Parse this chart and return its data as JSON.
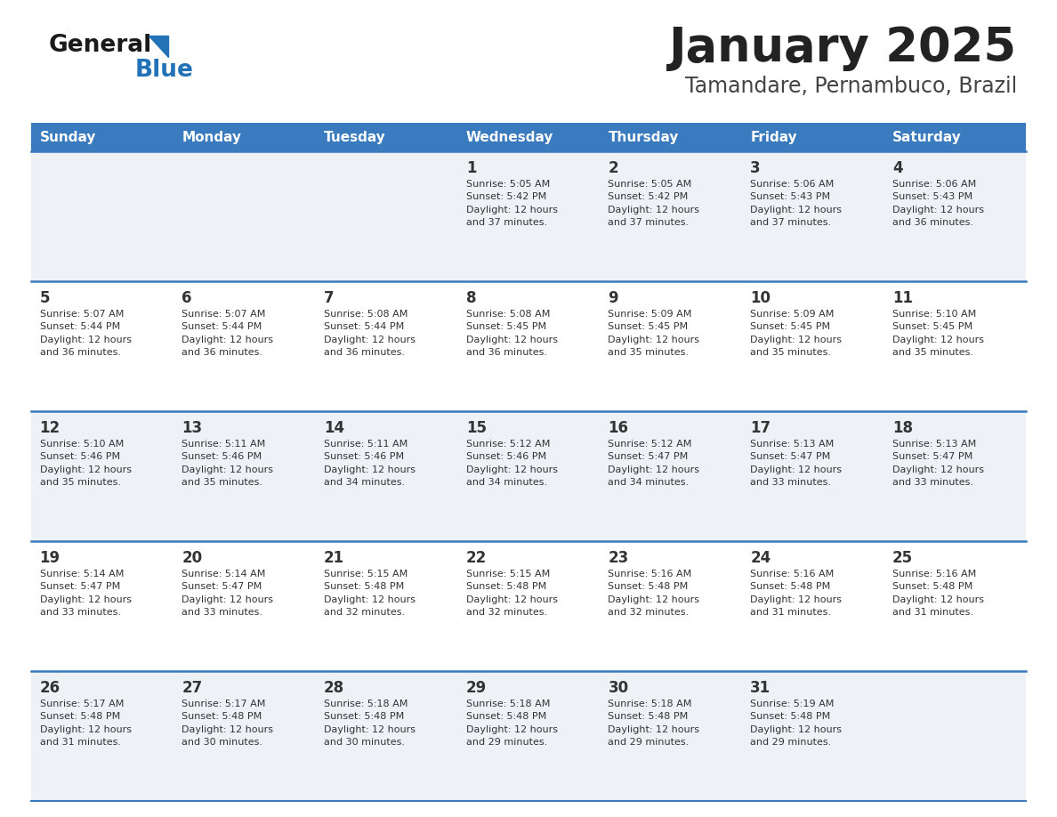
{
  "title": "January 2025",
  "subtitle": "Tamandare, Pernambuco, Brazil",
  "days_of_week": [
    "Sunday",
    "Monday",
    "Tuesday",
    "Wednesday",
    "Thursday",
    "Friday",
    "Saturday"
  ],
  "header_bg_color": "#3a7abf",
  "header_text_color": "#ffffff",
  "row_bg_even": "#eef2f7",
  "row_bg_odd": "#ffffff",
  "cell_text_color": "#333333",
  "title_color": "#222222",
  "subtitle_color": "#444444",
  "separator_color": "#3a7abf",
  "calendar": [
    [
      {
        "day": null,
        "info": ""
      },
      {
        "day": null,
        "info": ""
      },
      {
        "day": null,
        "info": ""
      },
      {
        "day": 1,
        "info": "Sunrise: 5:05 AM\nSunset: 5:42 PM\nDaylight: 12 hours\nand 37 minutes."
      },
      {
        "day": 2,
        "info": "Sunrise: 5:05 AM\nSunset: 5:42 PM\nDaylight: 12 hours\nand 37 minutes."
      },
      {
        "day": 3,
        "info": "Sunrise: 5:06 AM\nSunset: 5:43 PM\nDaylight: 12 hours\nand 37 minutes."
      },
      {
        "day": 4,
        "info": "Sunrise: 5:06 AM\nSunset: 5:43 PM\nDaylight: 12 hours\nand 36 minutes."
      }
    ],
    [
      {
        "day": 5,
        "info": "Sunrise: 5:07 AM\nSunset: 5:44 PM\nDaylight: 12 hours\nand 36 minutes."
      },
      {
        "day": 6,
        "info": "Sunrise: 5:07 AM\nSunset: 5:44 PM\nDaylight: 12 hours\nand 36 minutes."
      },
      {
        "day": 7,
        "info": "Sunrise: 5:08 AM\nSunset: 5:44 PM\nDaylight: 12 hours\nand 36 minutes."
      },
      {
        "day": 8,
        "info": "Sunrise: 5:08 AM\nSunset: 5:45 PM\nDaylight: 12 hours\nand 36 minutes."
      },
      {
        "day": 9,
        "info": "Sunrise: 5:09 AM\nSunset: 5:45 PM\nDaylight: 12 hours\nand 35 minutes."
      },
      {
        "day": 10,
        "info": "Sunrise: 5:09 AM\nSunset: 5:45 PM\nDaylight: 12 hours\nand 35 minutes."
      },
      {
        "day": 11,
        "info": "Sunrise: 5:10 AM\nSunset: 5:45 PM\nDaylight: 12 hours\nand 35 minutes."
      }
    ],
    [
      {
        "day": 12,
        "info": "Sunrise: 5:10 AM\nSunset: 5:46 PM\nDaylight: 12 hours\nand 35 minutes."
      },
      {
        "day": 13,
        "info": "Sunrise: 5:11 AM\nSunset: 5:46 PM\nDaylight: 12 hours\nand 35 minutes."
      },
      {
        "day": 14,
        "info": "Sunrise: 5:11 AM\nSunset: 5:46 PM\nDaylight: 12 hours\nand 34 minutes."
      },
      {
        "day": 15,
        "info": "Sunrise: 5:12 AM\nSunset: 5:46 PM\nDaylight: 12 hours\nand 34 minutes."
      },
      {
        "day": 16,
        "info": "Sunrise: 5:12 AM\nSunset: 5:47 PM\nDaylight: 12 hours\nand 34 minutes."
      },
      {
        "day": 17,
        "info": "Sunrise: 5:13 AM\nSunset: 5:47 PM\nDaylight: 12 hours\nand 33 minutes."
      },
      {
        "day": 18,
        "info": "Sunrise: 5:13 AM\nSunset: 5:47 PM\nDaylight: 12 hours\nand 33 minutes."
      }
    ],
    [
      {
        "day": 19,
        "info": "Sunrise: 5:14 AM\nSunset: 5:47 PM\nDaylight: 12 hours\nand 33 minutes."
      },
      {
        "day": 20,
        "info": "Sunrise: 5:14 AM\nSunset: 5:47 PM\nDaylight: 12 hours\nand 33 minutes."
      },
      {
        "day": 21,
        "info": "Sunrise: 5:15 AM\nSunset: 5:48 PM\nDaylight: 12 hours\nand 32 minutes."
      },
      {
        "day": 22,
        "info": "Sunrise: 5:15 AM\nSunset: 5:48 PM\nDaylight: 12 hours\nand 32 minutes."
      },
      {
        "day": 23,
        "info": "Sunrise: 5:16 AM\nSunset: 5:48 PM\nDaylight: 12 hours\nand 32 minutes."
      },
      {
        "day": 24,
        "info": "Sunrise: 5:16 AM\nSunset: 5:48 PM\nDaylight: 12 hours\nand 31 minutes."
      },
      {
        "day": 25,
        "info": "Sunrise: 5:16 AM\nSunset: 5:48 PM\nDaylight: 12 hours\nand 31 minutes."
      }
    ],
    [
      {
        "day": 26,
        "info": "Sunrise: 5:17 AM\nSunset: 5:48 PM\nDaylight: 12 hours\nand 31 minutes."
      },
      {
        "day": 27,
        "info": "Sunrise: 5:17 AM\nSunset: 5:48 PM\nDaylight: 12 hours\nand 30 minutes."
      },
      {
        "day": 28,
        "info": "Sunrise: 5:18 AM\nSunset: 5:48 PM\nDaylight: 12 hours\nand 30 minutes."
      },
      {
        "day": 29,
        "info": "Sunrise: 5:18 AM\nSunset: 5:48 PM\nDaylight: 12 hours\nand 29 minutes."
      },
      {
        "day": 30,
        "info": "Sunrise: 5:18 AM\nSunset: 5:48 PM\nDaylight: 12 hours\nand 29 minutes."
      },
      {
        "day": 31,
        "info": "Sunrise: 5:19 AM\nSunset: 5:48 PM\nDaylight: 12 hours\nand 29 minutes."
      },
      {
        "day": null,
        "info": ""
      }
    ]
  ],
  "logo_general_color": "#1a1a1a",
  "logo_blue_color": "#2272b8"
}
